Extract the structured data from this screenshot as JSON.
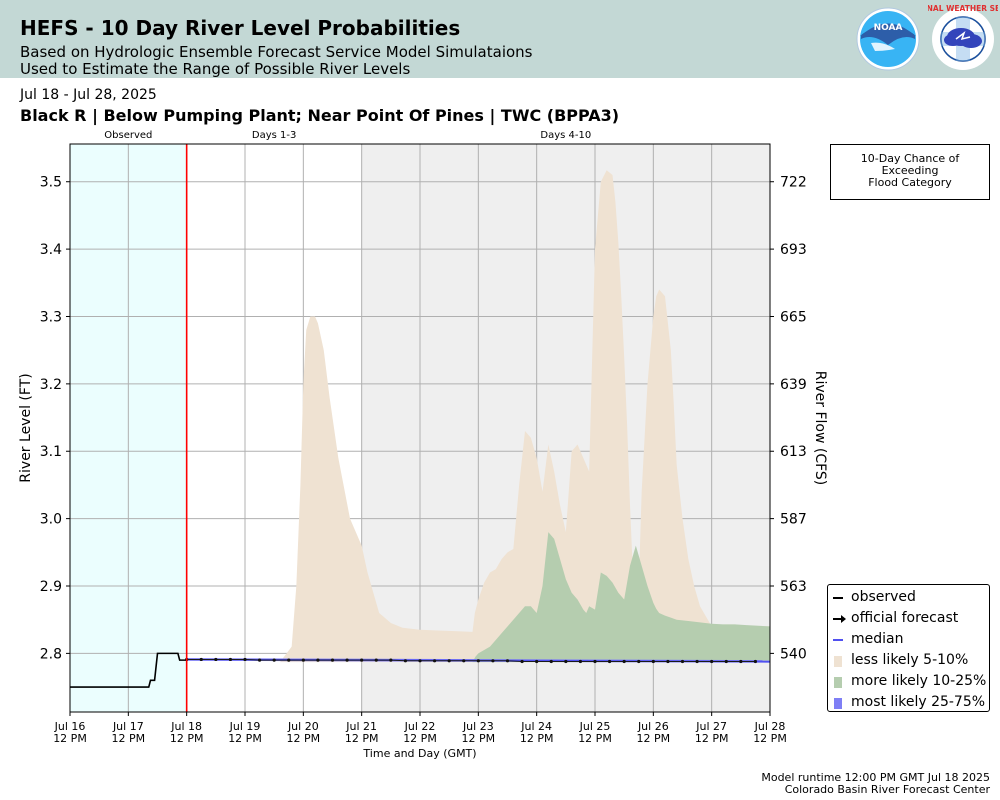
{
  "header": {
    "title": "HEFS - 10 Day River Level Probabilities",
    "subtitle_line1": "Based on Hydrologic Ensemble Forecast Service Model Simulataions",
    "subtitle_line2": "Used to Estimate the Range of Possible River Levels",
    "noaa_logo_text": "NOAA",
    "nws_logo_text": "NATIONAL WEATHER SERVICE"
  },
  "date_range": "Jul 18 - Jul 28, 2025",
  "station_title": "Black R | Below Pumping Plant; Near Point Of Pines | TWC (BPPA3)",
  "flood_box": {
    "line1": "10-Day Chance of",
    "line2": "Exceeding",
    "line3": "Flood Category"
  },
  "footer": {
    "runtime": "Model runtime 12:00 PM GMT Jul 18 2025",
    "center": "Colorado Basin River Forecast Center"
  },
  "colors": {
    "header_bg": "#c3d8d5",
    "observed_bg": "#ebfefe",
    "days4_10_bg": "#efefef",
    "now_line": "#ff0000",
    "less_likely": "#efe2d2",
    "more_likely": "#b5cdaf",
    "most_likely": "#7f7ff5",
    "median": "#5050f0"
  },
  "chart_data": {
    "type": "area",
    "xlabel": "Time and Day (GMT)",
    "ylabel": "River Level (FT)",
    "ylabel_right": "River Flow (CFS)",
    "x_ticks": [
      {
        "day": 0,
        "line1": "Jul 16",
        "line2": "12 PM"
      },
      {
        "day": 1,
        "line1": "Jul 17",
        "line2": "12 PM"
      },
      {
        "day": 2,
        "line1": "Jul 18",
        "line2": "12 PM"
      },
      {
        "day": 3,
        "line1": "Jul 19",
        "line2": "12 PM"
      },
      {
        "day": 4,
        "line1": "Jul 20",
        "line2": "12 PM"
      },
      {
        "day": 5,
        "line1": "Jul 21",
        "line2": "12 PM"
      },
      {
        "day": 6,
        "line1": "Jul 22",
        "line2": "12 PM"
      },
      {
        "day": 7,
        "line1": "Jul 23",
        "line2": "12 PM"
      },
      {
        "day": 8,
        "line1": "Jul 24",
        "line2": "12 PM"
      },
      {
        "day": 9,
        "line1": "Jul 25",
        "line2": "12 PM"
      },
      {
        "day": 10,
        "line1": "Jul 26",
        "line2": "12 PM"
      },
      {
        "day": 11,
        "line1": "Jul 27",
        "line2": "12 PM"
      },
      {
        "day": 12,
        "line1": "Jul 28",
        "line2": "12 PM"
      }
    ],
    "xlim": [
      0,
      12
    ],
    "ylim": [
      2.713,
      3.556
    ],
    "y_ticks": [
      2.8,
      2.9,
      3.0,
      3.1,
      3.2,
      3.3,
      3.4,
      3.5
    ],
    "y_tick_labels": [
      "2.8",
      "2.9",
      "3.0",
      "3.1",
      "3.2",
      "3.3",
      "3.4",
      "3.5"
    ],
    "right_ticks": [
      {
        "level": 2.8,
        "label": "540"
      },
      {
        "level": 2.9,
        "label": "563"
      },
      {
        "level": 3.0,
        "label": "587"
      },
      {
        "level": 3.1,
        "label": "613"
      },
      {
        "level": 3.2,
        "label": "639"
      },
      {
        "level": 3.3,
        "label": "665"
      },
      {
        "level": 3.4,
        "label": "693"
      },
      {
        "level": 3.5,
        "label": "722"
      }
    ],
    "grid": true,
    "forecast_start_day": 2,
    "periods": [
      {
        "label": "Observed",
        "start": 0,
        "end": 2
      },
      {
        "label": "Days 1-3",
        "start": 2,
        "end": 5
      },
      {
        "label": "Days 4-10",
        "start": 5,
        "end": 12
      }
    ],
    "legend_position": "bottom-right",
    "legend": [
      {
        "label": "observed",
        "kind": "line",
        "color": "#000000"
      },
      {
        "label": "official forecast",
        "kind": "arrow",
        "color": "#000000"
      },
      {
        "label": "median",
        "kind": "line",
        "color": "#5050f0"
      },
      {
        "label": "less likely 5-10%",
        "kind": "patch",
        "color": "#efe2d2"
      },
      {
        "label": "more likely 10-25%",
        "kind": "patch",
        "color": "#b5cdaf"
      },
      {
        "label": "most likely 25-75%",
        "kind": "patch",
        "color": "#7f7ff5"
      }
    ],
    "series": [
      {
        "name": "observed",
        "x": [
          0,
          1.35,
          1.38,
          1.45,
          1.5,
          1.55,
          1.85,
          1.88,
          2.0
        ],
        "y": [
          2.75,
          2.75,
          2.76,
          2.76,
          2.8,
          2.8,
          2.8,
          2.79,
          2.79
        ]
      },
      {
        "name": "official forecast",
        "x": [
          2.0,
          2.25,
          2.5,
          2.75,
          3.0,
          3.25,
          3.5,
          3.75,
          4.0,
          4.25,
          4.5,
          4.75,
          5.0,
          5.25,
          5.5,
          5.75,
          6.0,
          6.25,
          6.5,
          6.75,
          7.0,
          7.25,
          7.5,
          7.75,
          8.0,
          8.25,
          8.5,
          8.75,
          9.0,
          9.25,
          9.5,
          9.75,
          10.0,
          10.25,
          10.5,
          10.75,
          11.0,
          11.25,
          11.5,
          11.75
        ],
        "y": [
          2.791,
          2.791,
          2.791,
          2.791,
          2.791,
          2.79,
          2.79,
          2.79,
          2.79,
          2.79,
          2.79,
          2.79,
          2.79,
          2.79,
          2.79,
          2.789,
          2.789,
          2.789,
          2.789,
          2.789,
          2.789,
          2.789,
          2.789,
          2.788,
          2.788,
          2.788,
          2.788,
          2.788,
          2.788,
          2.788,
          2.788,
          2.788,
          2.788,
          2.788,
          2.788,
          2.788,
          2.788,
          2.788,
          2.788,
          2.788
        ]
      },
      {
        "name": "median",
        "x": [
          2.0,
          12.0
        ],
        "y": [
          2.791,
          2.788
        ]
      },
      {
        "name": "less likely 5-10%",
        "base": 2.787,
        "x": [
          2.0,
          3.6,
          3.8,
          3.88,
          3.95,
          4.0,
          4.05,
          4.12,
          4.2,
          4.25,
          4.35,
          4.45,
          4.6,
          4.8,
          5.0,
          5.1,
          5.2,
          5.3,
          5.5,
          5.7,
          6.0,
          6.3,
          6.6,
          6.9,
          6.94,
          7.0,
          7.1,
          7.2,
          7.3,
          7.4,
          7.5,
          7.6,
          7.7,
          7.8,
          7.85,
          7.9,
          8.0,
          8.1,
          8.2,
          8.3,
          8.4,
          8.5,
          8.6,
          8.7,
          8.8,
          8.85,
          8.9,
          9.0,
          9.1,
          9.2,
          9.3,
          9.35,
          9.4,
          9.45,
          9.5,
          9.55,
          9.6,
          9.65,
          9.7,
          9.75,
          9.8,
          9.9,
          10.0,
          10.05,
          10.1,
          10.2,
          10.3,
          10.35,
          10.4,
          10.5,
          10.6,
          10.7,
          10.8,
          11.0,
          11.2,
          11.4,
          11.5,
          11.7,
          12.0
        ],
        "y": [
          2.787,
          2.787,
          2.81,
          2.9,
          3.05,
          3.2,
          3.28,
          3.3,
          3.3,
          3.29,
          3.25,
          3.18,
          3.09,
          3.0,
          2.96,
          2.92,
          2.89,
          2.86,
          2.845,
          2.838,
          2.835,
          2.834,
          2.833,
          2.832,
          2.86,
          2.88,
          2.905,
          2.92,
          2.925,
          2.94,
          2.95,
          2.955,
          3.05,
          3.13,
          3.125,
          3.12,
          3.09,
          3.04,
          3.11,
          3.07,
          3.02,
          2.98,
          3.1,
          3.11,
          3.09,
          3.08,
          3.07,
          3.4,
          3.5,
          3.517,
          3.51,
          3.47,
          3.41,
          3.33,
          3.24,
          3.14,
          3.02,
          2.92,
          2.87,
          2.9,
          3.04,
          3.2,
          3.3,
          3.33,
          3.34,
          3.33,
          3.25,
          3.17,
          3.08,
          3.0,
          2.94,
          2.9,
          2.87,
          2.84,
          2.843,
          2.843,
          2.842,
          2.841,
          2.84
        ]
      },
      {
        "name": "more likely 10-25%",
        "base": 2.787,
        "x": [
          6.9,
          6.95,
          7.0,
          7.2,
          7.4,
          7.6,
          7.8,
          7.9,
          8.0,
          8.1,
          8.2,
          8.3,
          8.4,
          8.5,
          8.6,
          8.7,
          8.8,
          8.85,
          8.9,
          9.0,
          9.1,
          9.2,
          9.3,
          9.4,
          9.5,
          9.6,
          9.7,
          9.8,
          9.9,
          10.0,
          10.05,
          10.1,
          10.2,
          10.3,
          10.4,
          10.5,
          10.6,
          10.8,
          11.0,
          11.2,
          11.4,
          11.6,
          11.8,
          12.0
        ],
        "y": [
          2.787,
          2.795,
          2.8,
          2.81,
          2.83,
          2.85,
          2.87,
          2.87,
          2.86,
          2.9,
          2.98,
          2.97,
          2.94,
          2.91,
          2.89,
          2.88,
          2.865,
          2.86,
          2.87,
          2.865,
          2.92,
          2.915,
          2.905,
          2.89,
          2.88,
          2.93,
          2.96,
          2.93,
          2.9,
          2.875,
          2.866,
          2.86,
          2.856,
          2.853,
          2.85,
          2.849,
          2.848,
          2.846,
          2.844,
          2.843,
          2.843,
          2.842,
          2.841,
          2.84
        ]
      },
      {
        "name": "most likely 25-75%",
        "x": [
          2.0,
          12.0
        ],
        "upper": [
          2.793,
          2.79
        ],
        "lower": [
          2.789,
          2.786
        ]
      }
    ]
  }
}
